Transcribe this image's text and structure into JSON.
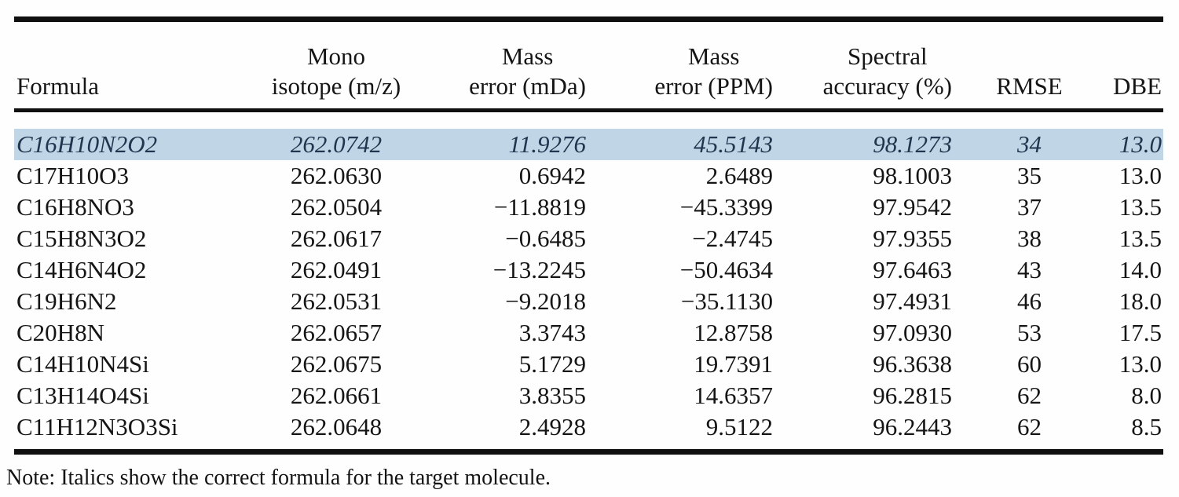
{
  "table": {
    "highlight_color": "#c0d5e5",
    "rule_color": "#101010",
    "text_color": "#151515",
    "highlight_text_color": "#21364e",
    "columns": [
      {
        "id": "formula",
        "line1": "",
        "line2": "Formula",
        "align": "left"
      },
      {
        "id": "mono",
        "line1": "Mono",
        "line2": "isotope (m/z)",
        "align": "center"
      },
      {
        "id": "mda",
        "line1": "Mass",
        "line2": "error (mDa)",
        "align": "right"
      },
      {
        "id": "ppm",
        "line1": "Mass",
        "line2": "error (PPM)",
        "align": "right"
      },
      {
        "id": "spectral",
        "line1": "Spectral",
        "line2": "accuracy (%)",
        "align": "right"
      },
      {
        "id": "rmse",
        "line1": "",
        "line2": "RMSE",
        "align": "center"
      },
      {
        "id": "dbe",
        "line1": "",
        "line2": "DBE",
        "align": "right"
      }
    ],
    "rows": [
      {
        "formula": "C16H10N2O2",
        "mono": "262.0742",
        "mda": "11.9276",
        "ppm": "45.5143",
        "spectral": "98.1273",
        "rmse": "34",
        "dbe": "13.0",
        "highlighted": true
      },
      {
        "formula": "C17H10O3",
        "mono": "262.0630",
        "mda": "0.6942",
        "ppm": "2.6489",
        "spectral": "98.1003",
        "rmse": "35",
        "dbe": "13.0",
        "highlighted": false
      },
      {
        "formula": "C16H8NO3",
        "mono": "262.0504",
        "mda": "−11.8819",
        "ppm": "−45.3399",
        "spectral": "97.9542",
        "rmse": "37",
        "dbe": "13.5",
        "highlighted": false
      },
      {
        "formula": "C15H8N3O2",
        "mono": "262.0617",
        "mda": "−0.6485",
        "ppm": "−2.4745",
        "spectral": "97.9355",
        "rmse": "38",
        "dbe": "13.5",
        "highlighted": false
      },
      {
        "formula": "C14H6N4O2",
        "mono": "262.0491",
        "mda": "−13.2245",
        "ppm": "−50.4634",
        "spectral": "97.6463",
        "rmse": "43",
        "dbe": "14.0",
        "highlighted": false
      },
      {
        "formula": "C19H6N2",
        "mono": "262.0531",
        "mda": "−9.2018",
        "ppm": "−35.1130",
        "spectral": "97.4931",
        "rmse": "46",
        "dbe": "18.0",
        "highlighted": false
      },
      {
        "formula": "C20H8N",
        "mono": "262.0657",
        "mda": "3.3743",
        "ppm": "12.8758",
        "spectral": "97.0930",
        "rmse": "53",
        "dbe": "17.5",
        "highlighted": false
      },
      {
        "formula": "C14H10N4Si",
        "mono": "262.0675",
        "mda": "5.1729",
        "ppm": "19.7391",
        "spectral": "96.3638",
        "rmse": "60",
        "dbe": "13.0",
        "highlighted": false
      },
      {
        "formula": "C13H14O4Si",
        "mono": "262.0661",
        "mda": "3.8355",
        "ppm": "14.6357",
        "spectral": "96.2815",
        "rmse": "62",
        "dbe": "8.0",
        "highlighted": false
      },
      {
        "formula": "C11H12N3O3Si",
        "mono": "262.0648",
        "mda": "2.4928",
        "ppm": "9.5122",
        "spectral": "96.2443",
        "rmse": "62",
        "dbe": "8.5",
        "highlighted": false
      }
    ],
    "note": "Note: Italics show the correct formula for the target molecule."
  },
  "chart_data": {
    "type": "table",
    "title": "",
    "columns": [
      "Formula",
      "Mono isotope (m/z)",
      "Mass error (mDa)",
      "Mass error (PPM)",
      "Spectral accuracy (%)",
      "RMSE",
      "DBE"
    ],
    "rows": [
      [
        "C16H10N2O2",
        262.0742,
        11.9276,
        45.5143,
        98.1273,
        34,
        13.0
      ],
      [
        "C17H10O3",
        262.063,
        0.6942,
        2.6489,
        98.1003,
        35,
        13.0
      ],
      [
        "C16H8NO3",
        262.0504,
        -11.8819,
        -45.3399,
        97.9542,
        37,
        13.5
      ],
      [
        "C15H8N3O2",
        262.0617,
        -0.6485,
        -2.4745,
        97.9355,
        38,
        13.5
      ],
      [
        "C14H6N4O2",
        262.0491,
        -13.2245,
        -50.4634,
        97.6463,
        43,
        14.0
      ],
      [
        "C19H6N2",
        262.0531,
        -9.2018,
        -35.113,
        97.4931,
        46,
        18.0
      ],
      [
        "C20H8N",
        262.0657,
        3.3743,
        12.8758,
        97.093,
        53,
        17.5
      ],
      [
        "C14H10N4Si",
        262.0675,
        5.1729,
        19.7391,
        96.3638,
        60,
        13.0
      ],
      [
        "C13H14O4Si",
        262.0661,
        3.8355,
        14.6357,
        96.2815,
        62,
        8.0
      ],
      [
        "C11H12N3O3Si",
        262.0648,
        2.4928,
        9.5122,
        96.2443,
        62,
        8.5
      ]
    ],
    "highlighted_row": "C16H10N2O2",
    "note": "Note: Italics show the correct formula for the target molecule."
  }
}
